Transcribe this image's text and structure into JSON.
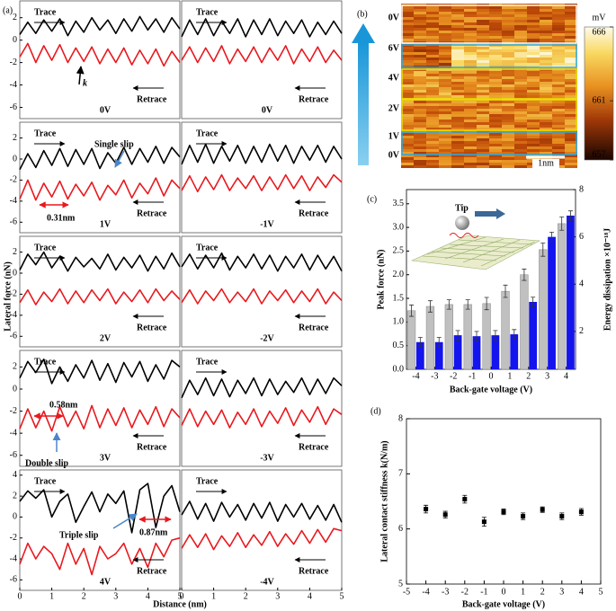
{
  "panel_a": {
    "label": "(a)",
    "ylabel": "Lateral force (nN)",
    "xlabel": "Distance (nm)"
  },
  "chart_data": [
    {
      "type": "line",
      "label": "0V",
      "label_color": "#22cc22",
      "xlim": [
        0,
        5
      ],
      "ylim": [
        -7,
        3.5
      ],
      "yticks": [
        -6,
        -4,
        -2,
        0,
        2
      ],
      "x": [
        0,
        0.25,
        0.5,
        0.75,
        1,
        1.25,
        1.5,
        1.75,
        2,
        2.25,
        2.5,
        2.75,
        3,
        3.25,
        3.5,
        3.75,
        4,
        4.25,
        4.5,
        4.75,
        5
      ],
      "series": [
        {
          "name": "Trace",
          "color": "#000000",
          "values": [
            0.5,
            1.6,
            0.6,
            1.8,
            0.8,
            1.9,
            0.4,
            1.7,
            0.7,
            2.0,
            0.9,
            1.8,
            0.6,
            1.9,
            0.8,
            2.1,
            0.9,
            1.9,
            0.7,
            2.0,
            1.0
          ]
        },
        {
          "name": "Retrace",
          "color": "#e8191e",
          "values": [
            -1.5,
            -0.3,
            -2.0,
            -0.5,
            -1.8,
            -0.4,
            -2.0,
            -0.7,
            -1.9,
            -0.6,
            -2.1,
            -0.8,
            -2.0,
            -0.7,
            -2.2,
            -0.9,
            -2.1,
            -0.8,
            -2.3,
            -1.0,
            -2.0
          ]
        }
      ],
      "annotations": [
        "k"
      ]
    },
    {
      "type": "line",
      "label": "0V",
      "label_color": "#22cc22",
      "xlim": [
        0,
        5
      ],
      "ylim": [
        -7,
        3.5
      ],
      "x": [
        0,
        0.25,
        0.5,
        0.75,
        1,
        1.25,
        1.5,
        1.75,
        2,
        2.25,
        2.5,
        2.75,
        3,
        3.25,
        3.5,
        3.75,
        4,
        4.25,
        4.5,
        4.75,
        5
      ],
      "series": [
        {
          "name": "Trace",
          "color": "#000000",
          "values": [
            0.3,
            1.8,
            0.5,
            1.9,
            0.4,
            1.7,
            0.6,
            1.9,
            0.3,
            1.8,
            0.5,
            1.9,
            0.4,
            1.7,
            0.6,
            1.8,
            0.3,
            1.6,
            0.5,
            1.7,
            0.6
          ]
        },
        {
          "name": "Retrace",
          "color": "#e8191e",
          "values": [
            -1.8,
            -0.6,
            -2.0,
            -0.7,
            -1.9,
            -0.5,
            -2.1,
            -0.8,
            -1.9,
            -0.6,
            -2.0,
            -0.7,
            -1.8,
            -0.5,
            -2.1,
            -0.8,
            -1.9,
            -0.6,
            -2.0,
            -0.9,
            -1.8
          ]
        }
      ]
    },
    {
      "type": "line",
      "label": "1V",
      "label_color": "#22cc22",
      "xlim": [
        0,
        5
      ],
      "ylim": [
        -7,
        3.5
      ],
      "yticks": [
        -6,
        -4,
        -2,
        0,
        2
      ],
      "x": [
        0,
        0.25,
        0.5,
        0.75,
        1,
        1.25,
        1.5,
        1.75,
        2,
        2.25,
        2.5,
        2.75,
        3,
        3.25,
        3.5,
        3.75,
        4,
        4.25,
        4.5,
        4.75,
        5
      ],
      "series": [
        {
          "name": "Trace",
          "color": "#000000",
          "values": [
            -1.0,
            0.5,
            -0.8,
            0.8,
            -0.6,
            1.0,
            -0.7,
            0.9,
            -0.5,
            1.0,
            -0.9,
            0.6,
            -0.4,
            1.1,
            -0.5,
            1.0,
            -0.3,
            1.2,
            -0.4,
            1.1,
            0.2
          ]
        },
        {
          "name": "Retrace",
          "color": "#e8191e",
          "values": [
            -3.8,
            -2.0,
            -3.9,
            -2.3,
            -3.6,
            -2.1,
            -3.8,
            -2.4,
            -3.5,
            -2.2,
            -3.9,
            -2.5,
            -3.4,
            -2.0,
            -3.7,
            -2.3,
            -3.3,
            -1.8,
            -3.5,
            -2.0,
            -2.8
          ]
        }
      ],
      "annotations": [
        "Single slip",
        "0.31nm"
      ]
    },
    {
      "type": "line",
      "label": "-1V",
      "label_color": "#22cc22",
      "xlim": [
        0,
        5
      ],
      "ylim": [
        -7,
        3.5
      ],
      "x": [
        0,
        0.25,
        0.5,
        0.75,
        1,
        1.25,
        1.5,
        1.75,
        2,
        2.25,
        2.5,
        2.75,
        3,
        3.25,
        3.5,
        3.75,
        4,
        4.25,
        4.5,
        4.75,
        5
      ],
      "series": [
        {
          "name": "Trace",
          "color": "#000000",
          "values": [
            -0.5,
            1.3,
            -0.3,
            1.4,
            -0.4,
            1.2,
            -0.2,
            1.3,
            -0.4,
            1.2,
            -0.3,
            1.4,
            -0.2,
            1.3,
            -0.4,
            1.2,
            -0.1,
            1.3,
            -0.3,
            1.2,
            0.0
          ]
        },
        {
          "name": "Retrace",
          "color": "#e8191e",
          "values": [
            -3.0,
            -1.6,
            -3.1,
            -1.7,
            -2.9,
            -1.5,
            -3.0,
            -1.8,
            -2.8,
            -1.6,
            -3.0,
            -1.7,
            -2.9,
            -1.5,
            -2.8,
            -1.6,
            -3.0,
            -1.7,
            -2.7,
            -1.5,
            -2.2
          ]
        }
      ]
    },
    {
      "type": "line",
      "label": "2V",
      "label_color": "#22cc22",
      "xlim": [
        0,
        5
      ],
      "ylim": [
        -7,
        3.5
      ],
      "yticks": [
        -6,
        -4,
        -2,
        0,
        2
      ],
      "x": [
        0,
        0.25,
        0.5,
        0.75,
        1,
        1.25,
        1.5,
        1.75,
        2,
        2.25,
        2.5,
        2.75,
        3,
        3.25,
        3.5,
        3.75,
        4,
        4.25,
        4.5,
        4.75,
        5
      ],
      "series": [
        {
          "name": "Trace",
          "color": "#000000",
          "values": [
            0.3,
            1.8,
            0.8,
            2.0,
            0.5,
            1.6,
            0.2,
            1.5,
            0.6,
            1.4,
            0.4,
            1.8,
            0.3,
            1.5,
            0.5,
            1.7,
            0.2,
            1.6,
            0.4,
            1.9,
            0.6
          ]
        },
        {
          "name": "Retrace",
          "color": "#e8191e",
          "values": [
            -2.8,
            -1.6,
            -3.0,
            -1.8,
            -2.7,
            -1.5,
            -2.9,
            -1.7,
            -2.8,
            -1.6,
            -2.6,
            -1.5,
            -2.9,
            -1.8,
            -2.7,
            -1.6,
            -2.8,
            -1.5,
            -2.6,
            -1.7,
            -2.5
          ]
        }
      ]
    },
    {
      "type": "line",
      "label": "-2V",
      "label_color": "#22cc22",
      "xlim": [
        0,
        5
      ],
      "ylim": [
        -7,
        3.5
      ],
      "x": [
        0,
        0.25,
        0.5,
        0.75,
        1,
        1.25,
        1.5,
        1.75,
        2,
        2.25,
        2.5,
        2.75,
        3,
        3.25,
        3.5,
        3.75,
        4,
        4.25,
        4.5,
        4.75,
        5
      ],
      "series": [
        {
          "name": "Trace",
          "color": "#000000",
          "values": [
            0.6,
            1.8,
            0.4,
            1.7,
            0.5,
            1.9,
            0.3,
            1.6,
            0.5,
            1.8,
            0.4,
            1.7,
            0.2,
            1.6,
            0.5,
            1.8,
            0.3,
            1.7,
            0.4,
            1.6,
            0.2
          ]
        },
        {
          "name": "Retrace",
          "color": "#e8191e",
          "values": [
            -2.8,
            -1.6,
            -2.9,
            -1.7,
            -2.6,
            -1.5,
            -2.8,
            -1.8,
            -2.7,
            -1.5,
            -2.9,
            -1.7,
            -2.6,
            -1.6,
            -2.8,
            -1.7,
            -2.7,
            -1.5,
            -2.9,
            -1.8,
            -2.6
          ]
        }
      ]
    },
    {
      "type": "line",
      "label": "3V",
      "label_color": "#22cc22",
      "xlim": [
        0,
        5
      ],
      "ylim": [
        -7,
        3.5
      ],
      "yticks": [
        -6,
        -4,
        -2,
        0,
        2
      ],
      "x": [
        0,
        0.25,
        0.5,
        0.75,
        1,
        1.25,
        1.5,
        1.75,
        2,
        2.25,
        2.5,
        2.75,
        3,
        3.25,
        3.5,
        3.75,
        4,
        4.25,
        4.5,
        4.75,
        5
      ],
      "series": [
        {
          "name": "Trace",
          "color": "#000000",
          "values": [
            1.0,
            2.5,
            1.5,
            2.7,
            0.5,
            2.0,
            0.7,
            2.2,
            1.0,
            2.6,
            0.8,
            2.3,
            0.6,
            2.4,
            1.1,
            2.5,
            0.7,
            2.2,
            0.9,
            2.6,
            2.0
          ]
        },
        {
          "name": "Retrace",
          "color": "#e8191e",
          "values": [
            -3.6,
            -1.8,
            -3.5,
            -2.0,
            -3.8,
            -1.6,
            -3.4,
            -2.0,
            -3.6,
            -1.5,
            -3.5,
            -1.8,
            -3.3,
            -1.7,
            -3.5,
            -1.9,
            -3.2,
            -1.6,
            -3.4,
            -1.8,
            -2.6
          ]
        }
      ],
      "annotations": [
        "0.58nm",
        "Double slip"
      ]
    },
    {
      "type": "line",
      "label": "-3V",
      "label_color": "#22cc22",
      "xlim": [
        0,
        5
      ],
      "ylim": [
        -7,
        3.5
      ],
      "x": [
        0,
        0.25,
        0.5,
        0.75,
        1,
        1.25,
        1.5,
        1.75,
        2,
        2.25,
        2.5,
        2.75,
        3,
        3.25,
        3.5,
        3.75,
        4,
        4.25,
        4.5,
        4.75,
        5
      ],
      "series": [
        {
          "name": "Trace",
          "color": "#000000",
          "values": [
            -0.8,
            0.8,
            -0.5,
            1.0,
            -0.6,
            0.9,
            -0.7,
            0.8,
            -0.4,
            1.0,
            -0.6,
            0.9,
            -0.5,
            0.7,
            -0.3,
            1.0,
            -0.5,
            0.9,
            -0.4,
            1.0,
            0.3
          ]
        },
        {
          "name": "Retrace",
          "color": "#e8191e",
          "values": [
            -3.3,
            -1.8,
            -3.4,
            -2.0,
            -3.2,
            -1.9,
            -3.5,
            -2.1,
            -3.2,
            -1.8,
            -3.4,
            -2.0,
            -3.1,
            -1.7,
            -3.3,
            -1.9,
            -3.0,
            -1.6,
            -3.2,
            -1.8,
            -2.3
          ]
        }
      ]
    },
    {
      "type": "line",
      "label": "4V",
      "label_color": "#22cc22",
      "xlim": [
        0,
        5
      ],
      "ylim": [
        -7,
        4.5
      ],
      "yticks": [
        -6,
        -4,
        -2,
        0,
        2,
        4
      ],
      "xticks": [
        0,
        1,
        2,
        3,
        4,
        5
      ],
      "x": [
        0,
        0.25,
        0.5,
        0.75,
        1,
        1.25,
        1.5,
        1.75,
        2,
        2.25,
        2.5,
        2.75,
        3,
        3.25,
        3.5,
        3.75,
        4,
        4.25,
        4.5,
        4.75,
        5
      ],
      "series": [
        {
          "name": "Trace",
          "color": "#000000",
          "values": [
            1.5,
            2.5,
            1.8,
            2.6,
            0.0,
            1.5,
            2.2,
            -0.5,
            1.0,
            2.4,
            0.5,
            2.2,
            1.3,
            2.5,
            -1.5,
            2.6,
            3.2,
            -1.0,
            2.0,
            3.0,
            0.5
          ]
        },
        {
          "name": "Retrace",
          "color": "#e8191e",
          "values": [
            -4.5,
            -2.5,
            -4.0,
            -2.8,
            -3.5,
            -5.0,
            -2.5,
            -4.5,
            -3.0,
            -5.5,
            -2.8,
            -4.0,
            -3.5,
            -2.5,
            -4.5,
            -3.0,
            -4.8,
            -2.5,
            -3.8,
            -2.2,
            -2.0
          ]
        }
      ],
      "annotations": [
        "Triple slip",
        "0.87nm"
      ]
    },
    {
      "type": "line",
      "label": "-4V",
      "label_color": "#22cc22",
      "xlim": [
        0,
        5
      ],
      "ylim": [
        -7,
        4.5
      ],
      "xticks": [
        0,
        1,
        2,
        3,
        4,
        5
      ],
      "x": [
        0,
        0.25,
        0.5,
        0.75,
        1,
        1.25,
        1.5,
        1.75,
        2,
        2.25,
        2.5,
        2.75,
        3,
        3.25,
        3.5,
        3.75,
        4,
        4.25,
        4.5,
        4.75,
        5
      ],
      "series": [
        {
          "name": "Trace",
          "color": "#000000",
          "values": [
            0.2,
            1.5,
            -0.2,
            1.3,
            -0.4,
            1.4,
            0.0,
            1.2,
            -0.3,
            1.3,
            -0.1,
            1.4,
            -0.4,
            1.2,
            0.0,
            1.3,
            -0.2,
            1.1,
            -0.3,
            1.2,
            -0.5
          ]
        },
        {
          "name": "Retrace",
          "color": "#e8191e",
          "values": [
            -3.0,
            -1.7,
            -2.9,
            -1.6,
            -3.1,
            -1.8,
            -2.8,
            -1.5,
            -2.9,
            -1.7,
            -2.7,
            -1.4,
            -2.8,
            -1.6,
            -2.6,
            -1.3,
            -2.5,
            -1.2,
            -2.4,
            -1.1,
            -1.3
          ]
        }
      ]
    },
    {
      "type": "heatmap",
      "title": "(b)",
      "row_labels": [
        {
          "text": "0V",
          "color": "#000000"
        },
        {
          "text": "6V",
          "color": "#29a8e0"
        },
        {
          "text": "4V",
          "color": "#d8d000"
        },
        {
          "text": "2V",
          "color": "#9cc050"
        },
        {
          "text": "1V",
          "color": "#29a8e0"
        },
        {
          "text": "0V",
          "color": "#000000"
        }
      ],
      "colorbar": {
        "unit": "mV",
        "range": [
          657,
          666
        ],
        "ticks": [
          666,
          661,
          657
        ]
      },
      "scalebar": "1nm"
    },
    {
      "type": "bar",
      "title": "(c)",
      "xlabel": "Back-gate voltage (V)",
      "ylabel": "Peak force (nN)",
      "y2label": "Energy dissipation ×10⁻¹⁸J",
      "inset_label": "Tip",
      "categories": [
        "-4",
        "-3",
        "-2",
        "-1",
        "0",
        "1",
        "2",
        "3",
        "4"
      ],
      "ylim": [
        0,
        3.8
      ],
      "yticks": [
        {
          "value": 0,
          "label": "0.0"
        },
        0.5,
        {
          "value": 1,
          "label": "1.0"
        },
        1.5,
        {
          "value": 2,
          "label": "2.0"
        },
        2.5,
        {
          "value": 3,
          "label": "3.0"
        },
        3.5
      ],
      "y2lim": [
        0.4,
        8
      ],
      "y2ticks": [
        2,
        4,
        6,
        8
      ],
      "series": [
        {
          "color": "#c0c0c0",
          "values": [
            1.24,
            1.33,
            1.37,
            1.37,
            1.39,
            1.65,
            2.0,
            2.53,
            3.08
          ],
          "errors": [
            0.12,
            0.12,
            0.1,
            0.1,
            0.13,
            0.13,
            0.12,
            0.14,
            0.14
          ]
        },
        {
          "color": "#1414ee",
          "axis": "y2",
          "values": [
            1.55,
            1.55,
            1.84,
            1.8,
            1.84,
            1.88,
            3.25,
            6.0,
            6.9
          ],
          "errors": [
            0.2,
            0.2,
            0.2,
            0.2,
            0.2,
            0.2,
            0.2,
            0.2,
            0.2
          ]
        }
      ]
    },
    {
      "type": "scatter",
      "title": "(d)",
      "xlabel": "Back-gate voltage (V)",
      "ylabel": "Lateral contact stiffness k(N/m)",
      "x": [
        -4,
        -3,
        -2,
        -1,
        0,
        1,
        2,
        3,
        4
      ],
      "values": [
        6.36,
        6.26,
        6.54,
        6.13,
        6.31,
        6.23,
        6.35,
        6.23,
        6.31
      ],
      "errors": [
        0.07,
        0.06,
        0.07,
        0.08,
        0.05,
        0.06,
        0.05,
        0.06,
        0.06
      ],
      "color": "#000000",
      "xlim": [
        -5,
        5
      ],
      "ylim": [
        5,
        8
      ],
      "xticks": [
        -5,
        -4,
        -3,
        -2,
        -1,
        0,
        1,
        2,
        3,
        4,
        5
      ],
      "yticks": [
        5,
        6,
        7,
        8
      ]
    }
  ]
}
